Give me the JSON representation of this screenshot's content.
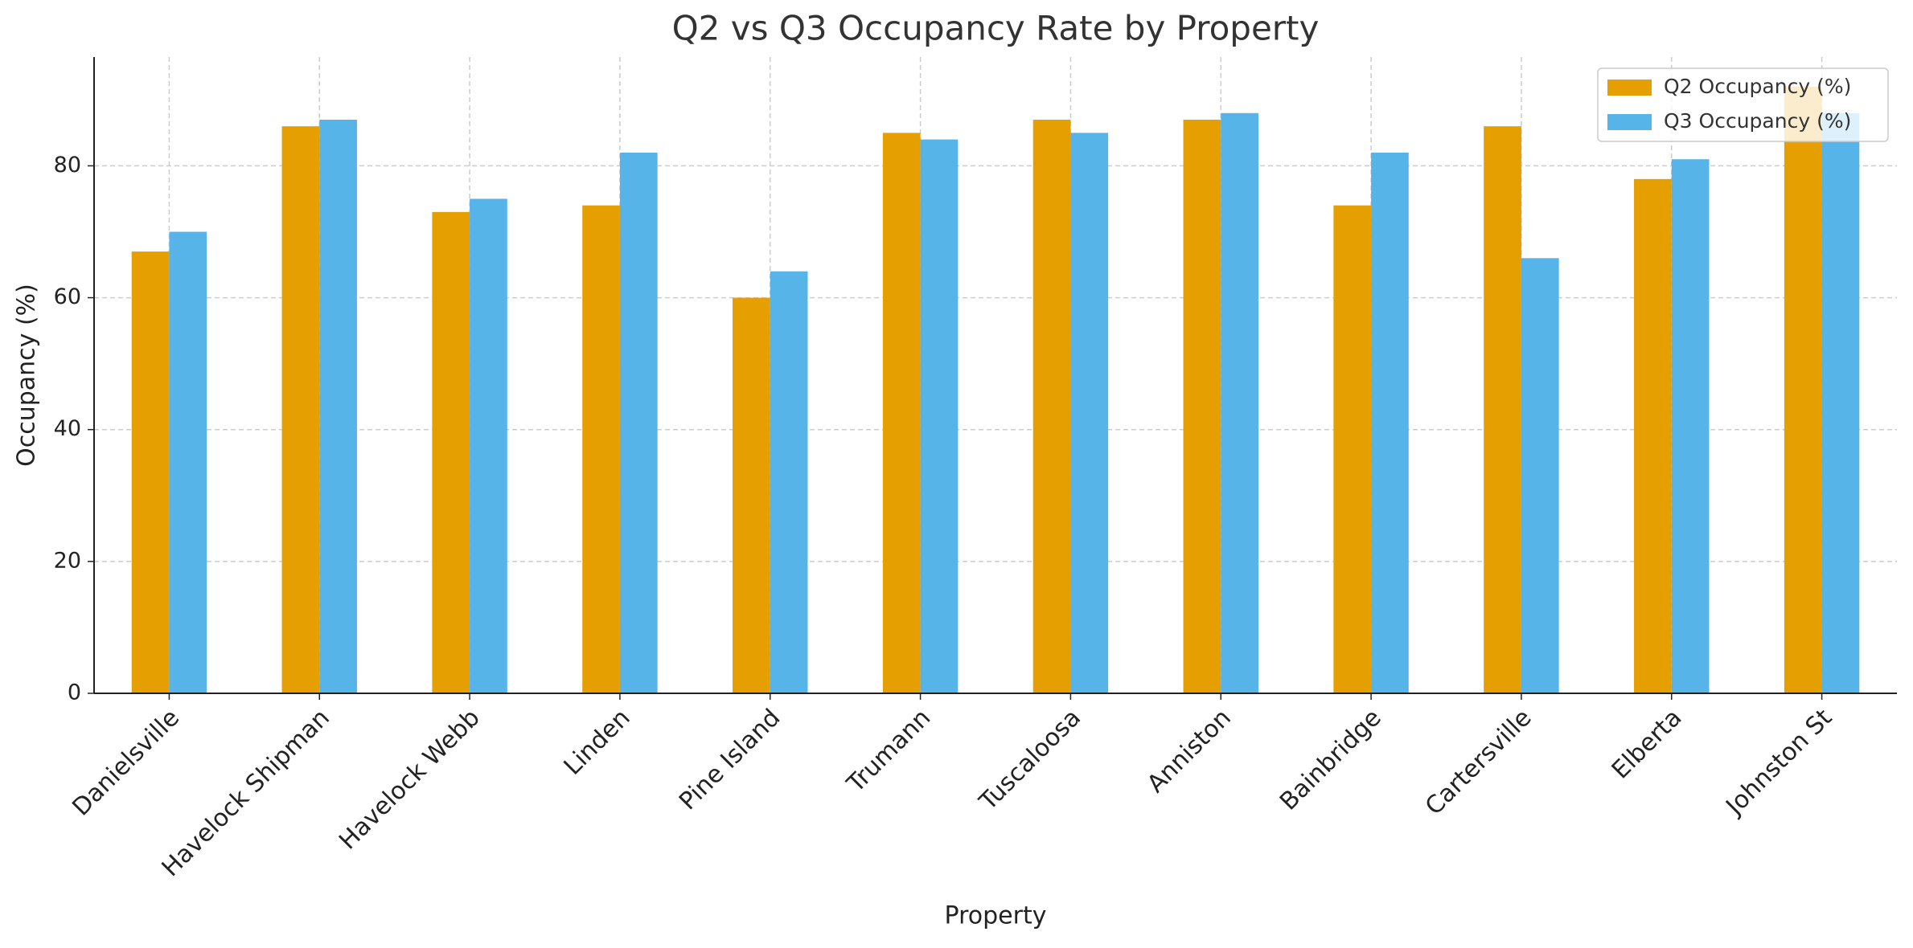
{
  "chart_data": {
    "type": "bar",
    "title": "Q2 vs Q3 Occupancy Rate by Property",
    "x_label": "Property",
    "y_label": "Occupancy (%)",
    "categories": [
      "Danielsville",
      "Havelock Shipman",
      "Havelock Webb",
      "Linden",
      "Pine Island",
      "Trumann",
      "Tuscaloosa",
      "Anniston",
      "Bainbridge",
      "Cartersville",
      "Elberta",
      "Johnston St"
    ],
    "series": [
      {
        "name": "Q2 Occupancy (%)",
        "color": "#E69F00",
        "values": [
          67,
          86,
          73,
          74,
          60,
          85,
          87,
          87,
          74,
          86,
          78,
          92
        ]
      },
      {
        "name": "Q3 Occupancy (%)",
        "color": "#56B4E9",
        "values": [
          70,
          87,
          75,
          82,
          64,
          84,
          85,
          88,
          82,
          66,
          81,
          88
        ]
      }
    ],
    "ylim": [
      0,
      96.5
    ],
    "yticks": [
      0,
      20,
      40,
      60,
      80
    ],
    "grid": true,
    "legend": "upper right"
  }
}
